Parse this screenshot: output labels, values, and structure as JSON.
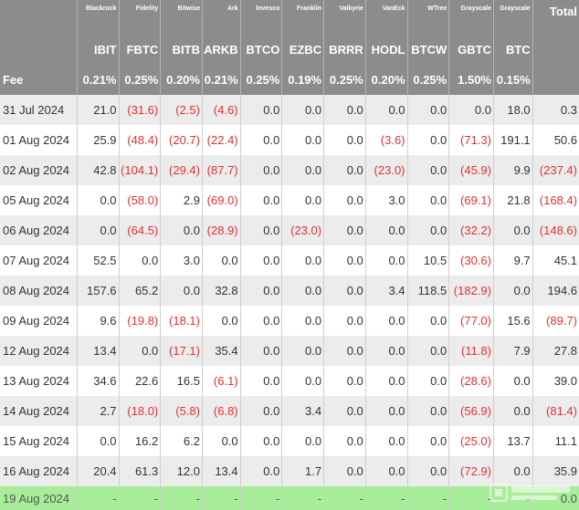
{
  "issuers": [
    "Blackrock",
    "Fidelity",
    "Bitwise",
    "Ark",
    "Invesco",
    "Franklin",
    "Valkyrie",
    "VanEck",
    "WTree",
    "Grayscale",
    "Grayscale"
  ],
  "total_label": "Total",
  "tickers": [
    "IBIT",
    "FBTC",
    "BITB",
    "ARKB",
    "BTCO",
    "EZBC",
    "BRRR",
    "HODL",
    "BTCW",
    "GBTC",
    "BTC"
  ],
  "fee_label": "Fee",
  "fees": [
    "0.21%",
    "0.25%",
    "0.20%",
    "0.21%",
    "0.25%",
    "0.19%",
    "0.25%",
    "0.20%",
    "0.25%",
    "1.50%",
    "0.15%"
  ],
  "rows": [
    {
      "date": "31 Jul 2024",
      "values": [
        "21.0",
        "(31.6)",
        "(2.5)",
        "(4.6)",
        "0.0",
        "0.0",
        "0.0",
        "0.0",
        "0.0",
        "0.0",
        "18.0"
      ],
      "total": "0.3"
    },
    {
      "date": "01 Aug 2024",
      "values": [
        "25.9",
        "(48.4)",
        "(20.7)",
        "(22.4)",
        "0.0",
        "0.0",
        "0.0",
        "(3.6)",
        "0.0",
        "(71.3)",
        "191.1"
      ],
      "total": "50.6"
    },
    {
      "date": "02 Aug 2024",
      "values": [
        "42.8",
        "(104.1)",
        "(29.4)",
        "(87.7)",
        "0.0",
        "0.0",
        "0.0",
        "(23.0)",
        "0.0",
        "(45.9)",
        "9.9"
      ],
      "total": "(237.4)"
    },
    {
      "date": "05 Aug 2024",
      "values": [
        "0.0",
        "(58.0)",
        "2.9",
        "(69.0)",
        "0.0",
        "0.0",
        "0.0",
        "3.0",
        "0.0",
        "(69.1)",
        "21.8"
      ],
      "total": "(168.4)"
    },
    {
      "date": "06 Aug 2024",
      "values": [
        "0.0",
        "(64.5)",
        "0.0",
        "(28.9)",
        "0.0",
        "(23.0)",
        "0.0",
        "0.0",
        "0.0",
        "(32.2)",
        "0.0"
      ],
      "total": "(148.6)"
    },
    {
      "date": "07 Aug 2024",
      "values": [
        "52.5",
        "0.0",
        "3.0",
        "0.0",
        "0.0",
        "0.0",
        "0.0",
        "0.0",
        "10.5",
        "(30.6)",
        "9.7"
      ],
      "total": "45.1"
    },
    {
      "date": "08 Aug 2024",
      "values": [
        "157.6",
        "65.2",
        "0.0",
        "32.8",
        "0.0",
        "0.0",
        "0.0",
        "3.4",
        "118.5",
        "(182.9)",
        "0.0"
      ],
      "total": "194.6"
    },
    {
      "date": "09 Aug 2024",
      "values": [
        "9.6",
        "(19.8)",
        "(18.1)",
        "0.0",
        "0.0",
        "0.0",
        "0.0",
        "0.0",
        "0.0",
        "(77.0)",
        "15.6"
      ],
      "total": "(89.7)"
    },
    {
      "date": "12 Aug 2024",
      "values": [
        "13.4",
        "0.0",
        "(17.1)",
        "35.4",
        "0.0",
        "0.0",
        "0.0",
        "0.0",
        "0.0",
        "(11.8)",
        "7.9"
      ],
      "total": "27.8"
    },
    {
      "date": "13 Aug 2024",
      "values": [
        "34.6",
        "22.6",
        "16.5",
        "(6.1)",
        "0.0",
        "0.0",
        "0.0",
        "0.0",
        "0.0",
        "(28.6)",
        "0.0"
      ],
      "total": "39.0"
    },
    {
      "date": "14 Aug 2024",
      "values": [
        "2.7",
        "(18.0)",
        "(5.8)",
        "(6.8)",
        "0.0",
        "3.4",
        "0.0",
        "0.0",
        "0.0",
        "(56.9)",
        "0.0"
      ],
      "total": "(81.4)"
    },
    {
      "date": "15 Aug 2024",
      "values": [
        "0.0",
        "16.2",
        "6.2",
        "0.0",
        "0.0",
        "0.0",
        "0.0",
        "0.0",
        "0.0",
        "(25.0)",
        "13.7"
      ],
      "total": "11.1"
    },
    {
      "date": "16 Aug 2024",
      "values": [
        "20.4",
        "61.3",
        "12.0",
        "13.4",
        "0.0",
        "1.7",
        "0.0",
        "0.0",
        "0.0",
        "(72.9)",
        "0.0"
      ],
      "total": "35.9"
    },
    {
      "date": "19 Aug 2024",
      "values": [
        "-",
        "-",
        "-",
        "-",
        "-",
        "-",
        "-",
        "-",
        "-",
        "-",
        "-"
      ],
      "total": "0.0",
      "highlight": true
    }
  ],
  "colors": {
    "header_bg": "#8c8c8c",
    "header_text": "#ffffff",
    "negative": "#e03131",
    "stripe": "#ececec",
    "highlight": "#a8ee9a"
  }
}
